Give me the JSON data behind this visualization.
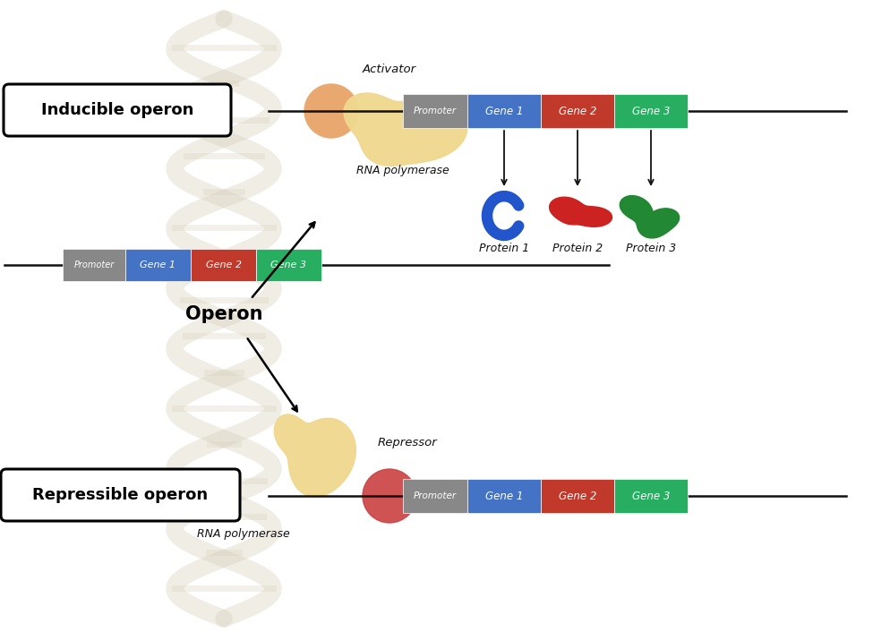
{
  "bg_color": "#ffffff",
  "promoter_color": "#888888",
  "gene1_color": "#4472c4",
  "gene2_color": "#c0392b",
  "gene3_color": "#27ae60",
  "activator_blob_color": "#f0d890",
  "activator_circle_color": "#e8a870",
  "repressor_blob_color": "#f0d890",
  "repressor_circle_color": "#cc4444",
  "protein1_color": "#2255cc",
  "protein2_color": "#cc2222",
  "protein3_color": "#228833",
  "line_color": "#111111",
  "label_color": "#111111",
  "dna_color": "#ddd8cc",
  "inducible_label": "Inducible operon",
  "repressible_label": "Repressible operon",
  "operon_label": "Operon",
  "activator_text": "Activator",
  "rna_pol_text1": "RNA polymerase",
  "rna_pol_text2": "RNA polymerase",
  "repressor_text": "Repressor",
  "promoter_text": "Promoter",
  "gene1_text": "Gene 1",
  "gene2_text": "Gene 2",
  "gene3_text": "Gene 3",
  "protein1_text": "Protein 1",
  "protein2_text": "Protein 2",
  "protein3_text": "Protein 3"
}
